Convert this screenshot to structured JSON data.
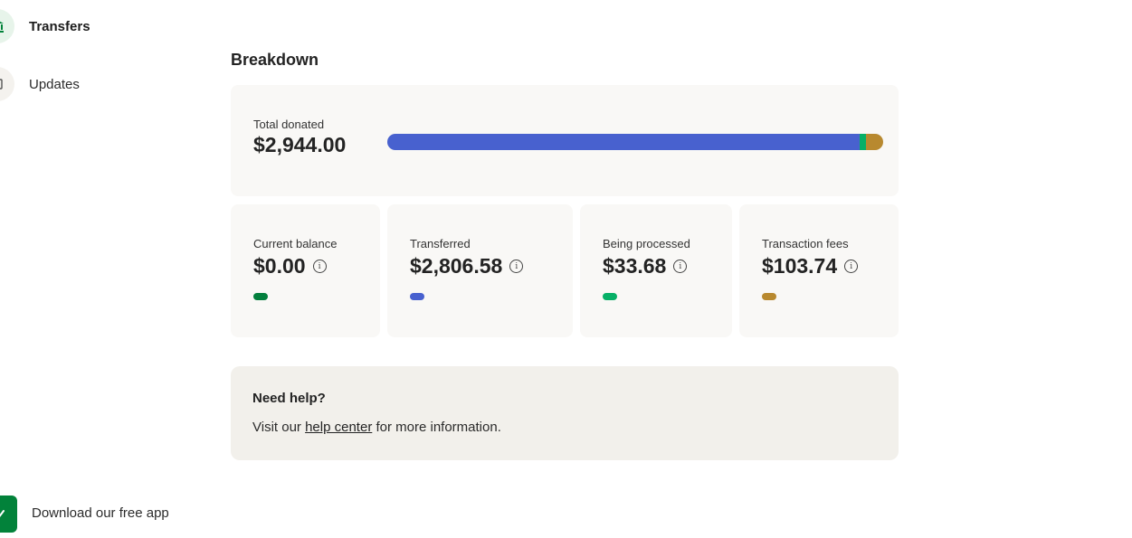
{
  "sidebar": {
    "items": [
      {
        "label": "Transfers",
        "icon": "bank-icon",
        "active": true
      },
      {
        "label": "Updates",
        "icon": "updates-icon",
        "active": false
      }
    ],
    "app_promo": {
      "label": "Download our free app",
      "icon": "app-icon"
    }
  },
  "breakdown": {
    "title": "Breakdown",
    "total": {
      "label": "Total donated",
      "value": "$2,944.00",
      "bar_segments": [
        {
          "name": "Transferred",
          "amount": 2806.58,
          "color": "#4861cf"
        },
        {
          "name": "Current balance",
          "amount": 0.0,
          "color": "#037f3d"
        },
        {
          "name": "Being processed",
          "amount": 33.68,
          "color": "#07b067"
        },
        {
          "name": "Transaction fees",
          "amount": 103.74,
          "color": "#b8892f"
        }
      ]
    },
    "stats": [
      {
        "label": "Current balance",
        "value": "$0.00",
        "color": "#037f3d"
      },
      {
        "label": "Transferred",
        "value": "$2,806.58",
        "color": "#4861cf"
      },
      {
        "label": "Being processed",
        "value": "$33.68",
        "color": "#07b067"
      },
      {
        "label": "Transaction fees",
        "value": "$103.74",
        "color": "#b8892f"
      }
    ]
  },
  "help": {
    "title": "Need help?",
    "text_before": "Visit our ",
    "link": "help center",
    "text_after": " for more information."
  }
}
